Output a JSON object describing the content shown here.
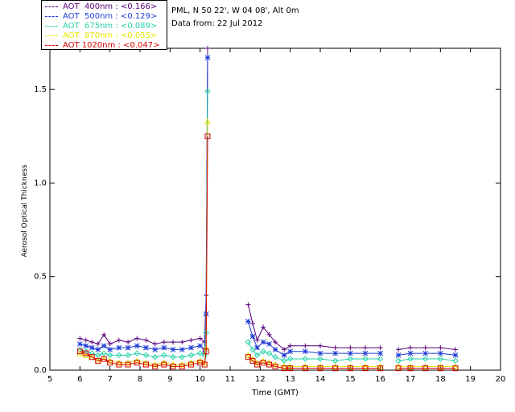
{
  "info": {
    "site": "PML, N 50 22', W 04 08', Alt 0m",
    "date_line": "Data from: 22 Jul 2012"
  },
  "legend": [
    {
      "label": "AOT  400nm : <0.166>",
      "color": "#5a007a"
    },
    {
      "label": "AOT  500nm : <0.129>",
      "color": "#1f3bd6"
    },
    {
      "label": "AOT  675nm : <0.089>",
      "color": "#27d3a8"
    },
    {
      "label": "AOT  870nm : <0.055>",
      "color": "#e6e600"
    },
    {
      "label": "AOT 1020nm : <0.047>",
      "color": "#d40000"
    }
  ],
  "chart_data": {
    "type": "scatter",
    "title": "",
    "xlabel": "Time (GMT)",
    "ylabel": "Aerosol Optical Thickness",
    "xlim": [
      5,
      20
    ],
    "ylim": [
      0,
      1.72
    ],
    "x_ticks": [
      "5",
      "6",
      "7",
      "8",
      "9",
      "10",
      "11",
      "12",
      "13",
      "14",
      "15",
      "16",
      "17",
      "18",
      "19",
      "20"
    ],
    "y_ticks": [
      "0.0",
      "0.5",
      "1.0",
      "1.5"
    ],
    "series": [
      {
        "name": "AOT  400nm : <0.166>",
        "color": "#5a007a",
        "marker": "+",
        "x": [
          6.0,
          6.2,
          6.4,
          6.6,
          6.8,
          7.0,
          7.3,
          7.6,
          7.9,
          8.2,
          8.5,
          8.8,
          9.1,
          9.4,
          9.7,
          10.0,
          10.15,
          10.2,
          10.25,
          11.6,
          11.75,
          11.9,
          12.1,
          12.3,
          12.5,
          12.8,
          13.0,
          13.5,
          14.0,
          14.5,
          15.0,
          15.5,
          16.0,
          16.6,
          17.0,
          17.5,
          18.0,
          18.5
        ],
        "y": [
          0.17,
          0.16,
          0.15,
          0.14,
          0.19,
          0.14,
          0.16,
          0.15,
          0.17,
          0.16,
          0.14,
          0.15,
          0.15,
          0.15,
          0.16,
          0.17,
          0.15,
          0.4,
          1.72,
          0.35,
          0.25,
          0.16,
          0.23,
          0.19,
          0.15,
          0.11,
          0.13,
          0.13,
          0.13,
          0.12,
          0.12,
          0.12,
          0.12,
          0.11,
          0.12,
          0.12,
          0.12,
          0.11
        ]
      },
      {
        "name": "AOT  500nm : <0.129>",
        "color": "#1f3bd6",
        "marker": "*",
        "x": [
          6.0,
          6.2,
          6.4,
          6.6,
          6.8,
          7.0,
          7.3,
          7.6,
          7.9,
          8.2,
          8.5,
          8.8,
          9.1,
          9.4,
          9.7,
          10.0,
          10.15,
          10.2,
          10.25,
          11.6,
          11.75,
          11.9,
          12.1,
          12.3,
          12.5,
          12.8,
          13.0,
          13.5,
          14.0,
          14.5,
          15.0,
          15.5,
          16.0,
          16.6,
          17.0,
          17.5,
          18.0,
          18.5
        ],
        "y": [
          0.14,
          0.13,
          0.12,
          0.11,
          0.13,
          0.11,
          0.12,
          0.12,
          0.13,
          0.12,
          0.11,
          0.12,
          0.11,
          0.11,
          0.12,
          0.13,
          0.11,
          0.3,
          1.67,
          0.26,
          0.18,
          0.12,
          0.15,
          0.14,
          0.11,
          0.08,
          0.1,
          0.1,
          0.09,
          0.09,
          0.09,
          0.09,
          0.09,
          0.08,
          0.09,
          0.09,
          0.09,
          0.08
        ]
      },
      {
        "name": "AOT  675nm : <0.089>",
        "color": "#27d3a8",
        "marker": "diamond",
        "x": [
          6.0,
          6.2,
          6.4,
          6.6,
          6.8,
          7.0,
          7.3,
          7.6,
          7.9,
          8.2,
          8.5,
          8.8,
          9.1,
          9.4,
          9.7,
          10.0,
          10.15,
          10.2,
          10.25,
          11.6,
          11.75,
          11.9,
          12.1,
          12.3,
          12.5,
          12.8,
          13.0,
          13.5,
          14.0,
          14.5,
          15.0,
          15.5,
          16.0,
          16.6,
          17.0,
          17.5,
          18.0,
          18.5
        ],
        "y": [
          0.11,
          0.1,
          0.09,
          0.08,
          0.09,
          0.08,
          0.08,
          0.08,
          0.09,
          0.08,
          0.07,
          0.08,
          0.07,
          0.07,
          0.08,
          0.09,
          0.08,
          0.2,
          1.49,
          0.15,
          0.11,
          0.08,
          0.1,
          0.09,
          0.07,
          0.05,
          0.06,
          0.06,
          0.06,
          0.05,
          0.06,
          0.06,
          0.06,
          0.05,
          0.06,
          0.06,
          0.06,
          0.05
        ]
      },
      {
        "name": "AOT  870nm : <0.055>",
        "color": "#e6e600",
        "marker": "triangle",
        "x": [
          6.0,
          6.2,
          6.4,
          6.6,
          6.8,
          7.0,
          7.3,
          7.6,
          7.9,
          8.2,
          8.5,
          8.8,
          9.1,
          9.4,
          9.7,
          10.0,
          10.15,
          10.2,
          10.25,
          11.6,
          11.75,
          11.9,
          12.1,
          12.3,
          12.5,
          12.8,
          13.0,
          13.5,
          14.0,
          14.5,
          15.0,
          15.5,
          16.0,
          16.6,
          17.0,
          17.5,
          18.0,
          18.5
        ],
        "y": [
          0.09,
          0.08,
          0.07,
          0.05,
          0.06,
          0.05,
          0.04,
          0.04,
          0.05,
          0.04,
          0.03,
          0.04,
          0.03,
          0.03,
          0.04,
          0.05,
          0.04,
          0.12,
          1.33,
          0.08,
          0.06,
          0.04,
          0.05,
          0.04,
          0.03,
          0.02,
          0.02,
          0.02,
          0.02,
          0.02,
          0.02,
          0.02,
          0.02,
          0.02,
          0.02,
          0.02,
          0.02,
          0.02
        ]
      },
      {
        "name": "AOT 1020nm : <0.047>",
        "color": "#d40000",
        "marker": "square",
        "x": [
          6.0,
          6.2,
          6.4,
          6.6,
          6.8,
          7.0,
          7.3,
          7.6,
          7.9,
          8.2,
          8.5,
          8.8,
          9.1,
          9.4,
          9.7,
          10.0,
          10.15,
          10.2,
          10.25,
          11.6,
          11.75,
          11.9,
          12.1,
          12.3,
          12.5,
          12.8,
          13.0,
          13.5,
          14.0,
          14.5,
          15.0,
          15.5,
          16.0,
          16.6,
          17.0,
          17.5,
          18.0,
          18.5
        ],
        "y": [
          0.1,
          0.09,
          0.07,
          0.05,
          0.06,
          0.04,
          0.03,
          0.03,
          0.04,
          0.03,
          0.02,
          0.03,
          0.02,
          0.02,
          0.03,
          0.04,
          0.03,
          0.1,
          1.25,
          0.07,
          0.05,
          0.03,
          0.04,
          0.03,
          0.02,
          0.01,
          0.01,
          0.01,
          0.01,
          0.01,
          0.01,
          0.01,
          0.01,
          0.01,
          0.01,
          0.01,
          0.01,
          0.01
        ]
      }
    ]
  }
}
